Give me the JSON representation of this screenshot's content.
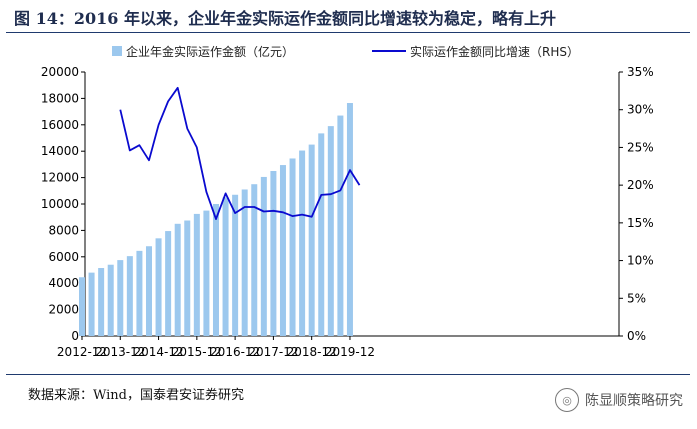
{
  "header": {
    "title": "图 14：2016 年以来，企业年金实际运作金额同比增速较为稳定，略有上升"
  },
  "footer": {
    "source": "数据来源：Wind，国泰君安证券研究",
    "watermark": "陈显顺策略研究"
  },
  "chart_data": {
    "type": "bar",
    "legend_position": "top",
    "grid": false,
    "x_tick_labels": [
      "2012-12",
      "2013-12",
      "2014-12",
      "2015-12",
      "2016-12",
      "2017-12",
      "2018-12",
      "2019-12"
    ],
    "y_left": {
      "min": 0,
      "max": 20000,
      "ticks": [
        "0",
        "2000",
        "4000",
        "6000",
        "8000",
        "10000",
        "12000",
        "14000",
        "16000",
        "18000",
        "20000"
      ]
    },
    "y_right": {
      "min": 0,
      "max": 35,
      "ticks": [
        "0%",
        "5%",
        "10%",
        "15%",
        "20%",
        "25%",
        "30%",
        "35%"
      ]
    },
    "series": [
      {
        "name": "企业年金实际运作金额（亿元）",
        "kind": "bar",
        "axis": "left",
        "color": "#9cc8ee",
        "x": [
          "2012-12",
          "2013-03",
          "2013-06",
          "2013-09",
          "2013-12",
          "2014-03",
          "2014-06",
          "2014-09",
          "2014-12",
          "2015-03",
          "2015-06",
          "2015-09",
          "2015-12",
          "2016-03",
          "2016-06",
          "2016-09",
          "2016-12",
          "2017-03",
          "2017-06",
          "2017-09",
          "2017-12",
          "2018-03",
          "2018-06",
          "2018-09",
          "2018-12",
          "2019-03",
          "2019-06",
          "2019-09",
          "2019-12"
        ],
        "values": [
          4450,
          4800,
          5150,
          5400,
          5750,
          6050,
          6450,
          6800,
          7400,
          7950,
          8500,
          8750,
          9250,
          9500,
          10000,
          10500,
          10700,
          11100,
          11500,
          12050,
          12500,
          12950,
          13450,
          14050,
          14500,
          15350,
          15900,
          16700,
          17650
        ]
      },
      {
        "name": "实际运作金额同比增速（RHS）",
        "kind": "line",
        "axis": "right",
        "color": "#0a0acf",
        "x": [
          "2013-12",
          "2014-03",
          "2014-06",
          "2014-09",
          "2014-12",
          "2015-03",
          "2015-06",
          "2015-09",
          "2015-12",
          "2016-03",
          "2016-06",
          "2016-09",
          "2016-12",
          "2017-03",
          "2017-06",
          "2017-09",
          "2017-12",
          "2018-03",
          "2018-06",
          "2018-09",
          "2018-12",
          "2019-03",
          "2019-06",
          "2019-09",
          "2019-12",
          "2020-03"
        ],
        "values": [
          30.0,
          24.6,
          25.3,
          23.3,
          28.0,
          31.1,
          32.9,
          27.5,
          25.0,
          19.1,
          15.5,
          18.9,
          16.3,
          17.1,
          17.1,
          16.5,
          16.6,
          16.4,
          15.9,
          16.1,
          15.8,
          18.7,
          18.8,
          19.3,
          22.0,
          20.0
        ]
      }
    ]
  }
}
